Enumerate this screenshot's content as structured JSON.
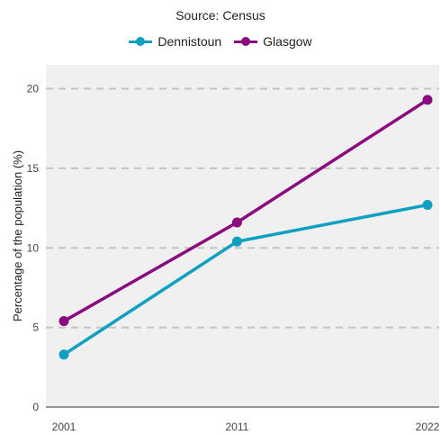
{
  "chart_data": {
    "type": "line",
    "title": "",
    "subtitle": "Source: Census",
    "xlabel": "",
    "ylabel": "Percentage of the population (%)",
    "categories": [
      "2001",
      "2011",
      "2022"
    ],
    "x": [
      2001,
      2011,
      2022
    ],
    "ylim": [
      0,
      21.5
    ],
    "yticks": [
      "0",
      "5",
      "10",
      "15",
      "20"
    ],
    "grid": "horizontal dashed",
    "legend_position": "top",
    "series": [
      {
        "name": "Dennistoun",
        "color": "#0e9fc1",
        "values": [
          3.3,
          10.4,
          12.7
        ]
      },
      {
        "name": "Glasgow",
        "color": "#8b0a80",
        "values": [
          5.4,
          11.6,
          19.3
        ]
      }
    ]
  }
}
